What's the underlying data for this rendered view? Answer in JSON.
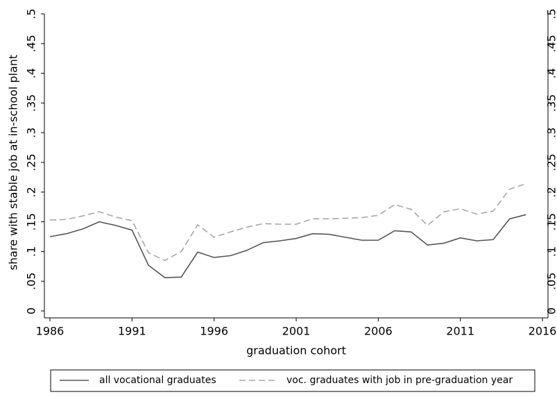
{
  "chart_data": {
    "type": "line",
    "x_label": "graduation cohort",
    "y_label": "share with stable job at in-school plant",
    "x": [
      1986,
      1987,
      1988,
      1989,
      1990,
      1991,
      1992,
      1993,
      1994,
      1995,
      1996,
      1997,
      1998,
      1999,
      2000,
      2001,
      2002,
      2003,
      2004,
      2005,
      2006,
      2007,
      2008,
      2009,
      2010,
      2011,
      2012,
      2013,
      2014,
      2015
    ],
    "series": [
      {
        "name": "all vocational graduates",
        "color": "#555555",
        "dash": false,
        "values": [
          0.125,
          0.13,
          0.138,
          0.15,
          0.144,
          0.136,
          0.077,
          0.056,
          0.057,
          0.099,
          0.09,
          0.093,
          0.102,
          0.115,
          0.118,
          0.122,
          0.13,
          0.129,
          0.124,
          0.119,
          0.119,
          0.135,
          0.133,
          0.111,
          0.114,
          0.123,
          0.118,
          0.12,
          0.155,
          0.162
        ]
      },
      {
        "name": "voc. graduates with job in pre-graduation year",
        "color": "#a6a6a6",
        "dash": true,
        "values": [
          0.153,
          0.154,
          0.16,
          0.167,
          0.158,
          0.152,
          0.098,
          0.085,
          0.1,
          0.145,
          0.124,
          0.133,
          0.141,
          0.147,
          0.146,
          0.146,
          0.155,
          0.155,
          0.156,
          0.157,
          0.161,
          0.179,
          0.171,
          0.144,
          0.167,
          0.172,
          0.163,
          0.168,
          0.205,
          0.214
        ]
      }
    ],
    "xlim": [
      1986,
      2016
    ],
    "xticks": [
      1986,
      1991,
      1996,
      2001,
      2006,
      2011,
      2016
    ],
    "ylim": [
      0,
      0.5
    ],
    "yticks": [
      0,
      {
        "value": 0.05,
        "label": ".05"
      },
      {
        "value": 0.1,
        "label": ".1"
      },
      {
        "value": 0.15,
        "label": ".15"
      },
      {
        "value": 0.2,
        "label": ".2"
      },
      {
        "value": 0.25,
        "label": ".25"
      },
      {
        "value": 0.3,
        "label": ".3"
      },
      {
        "value": 0.35,
        "label": ".35"
      },
      {
        "value": 0.4,
        "label": ".4"
      },
      {
        "value": 0.45,
        "label": ".45"
      },
      {
        "value": 0.5,
        "label": ".5"
      }
    ],
    "mirror_y_axis": true,
    "grid": false,
    "legend": "bottom"
  }
}
